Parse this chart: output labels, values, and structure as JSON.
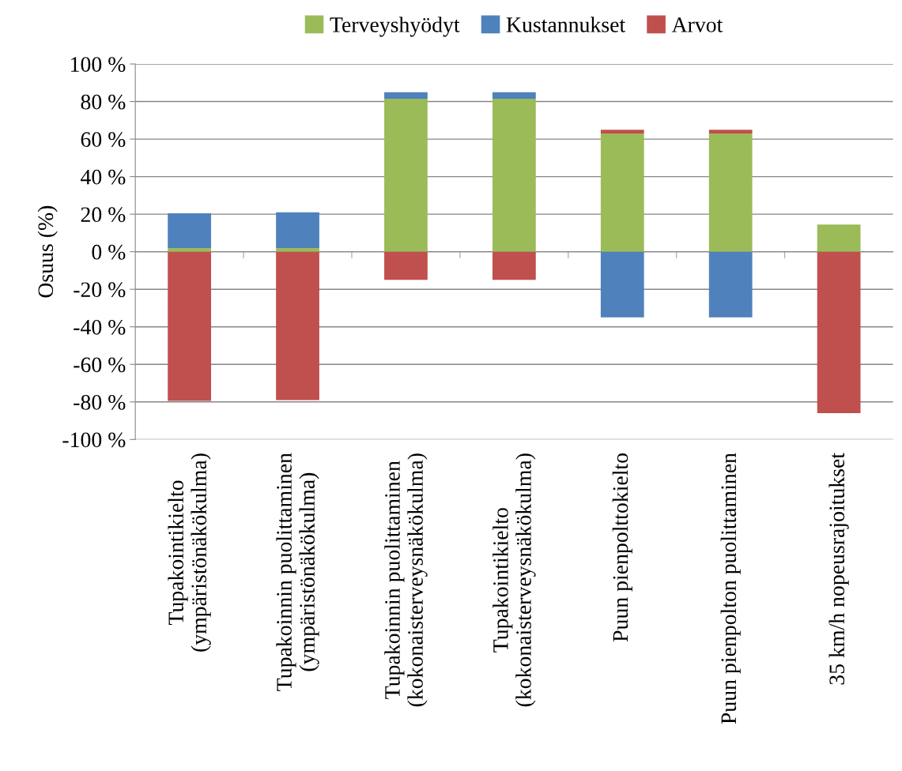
{
  "chart_data": {
    "type": "bar",
    "stacked": true,
    "ylabel": "Osuus (%)",
    "categories": [
      "Tupakointikielto\n(ympäristönäkökulma)",
      "Tupakoinnin puolittaminen\n(ympäristönäkökulma)",
      "Tupakoinnin puolittaminen\n(kokonaisterveysnäkökulma)",
      "Tupakointikielto\n(kokonaisterveysnäkökulma)",
      "Puun pienpolttokielto",
      "Puun pienpolton puolittaminen",
      "35 km/h nopeusrajoitukset"
    ],
    "series": [
      {
        "name": "Terveyshyödyt",
        "color": "#9bbb59",
        "values": [
          2,
          2,
          81.5,
          81.5,
          63,
          63,
          14.5
        ]
      },
      {
        "name": "Kustannukset",
        "color": "#4f81bd",
        "values": [
          18.5,
          19,
          3.5,
          3.5,
          -35,
          -35,
          0
        ]
      },
      {
        "name": "Arvot",
        "color": "#c0504d",
        "values": [
          -79.5,
          -79,
          -15,
          -15,
          2,
          2,
          -86
        ]
      }
    ],
    "ylim": [
      -100,
      100
    ],
    "yticks": [
      {
        "value": -100,
        "label": "-100 %"
      },
      {
        "value": -80,
        "label": "-80 %"
      },
      {
        "value": -60,
        "label": "-60 %"
      },
      {
        "value": -40,
        "label": "-40 %"
      },
      {
        "value": -20,
        "label": "-20 %"
      },
      {
        "value": 0,
        "label": "0 %"
      },
      {
        "value": 20,
        "label": "20 %"
      },
      {
        "value": 40,
        "label": "40 %"
      },
      {
        "value": 60,
        "label": "60 %"
      },
      {
        "value": 80,
        "label": "80 %"
      },
      {
        "value": 100,
        "label": "100 %"
      }
    ],
    "grid": "y",
    "legend": "top"
  }
}
